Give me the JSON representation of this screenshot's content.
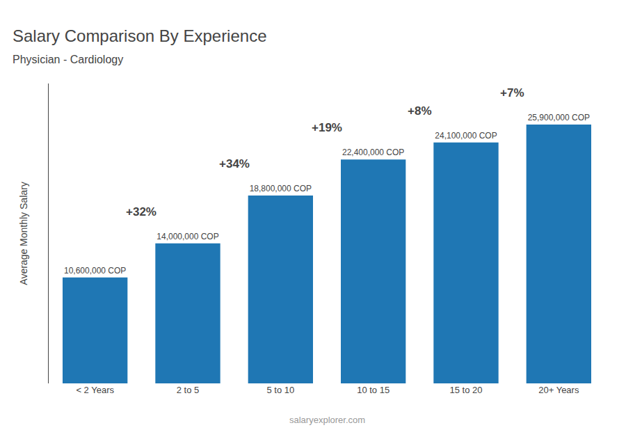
{
  "chart_data": {
    "type": "bar",
    "title": "Salary Comparison By Experience",
    "subtitle": "Physician - Cardiology",
    "ylabel": "Average Monthly Salary",
    "categories": [
      "< 2 Years",
      "2 to 5",
      "5 to 10",
      "10 to 15",
      "15 to 20",
      "20+ Years"
    ],
    "values": [
      10600000,
      14000000,
      18800000,
      22400000,
      24100000,
      25900000
    ],
    "value_labels": [
      "10,600,000 COP",
      "14,000,000 COP",
      "18,800,000 COP",
      "22,400,000 COP",
      "24,100,000 COP",
      "25,900,000 COP"
    ],
    "data_labels": true,
    "ylim": [
      0,
      30000000
    ],
    "tick_labels": "x",
    "grid": false,
    "annotations": [
      {
        "text": "+32%",
        "from": "< 2 Years",
        "to": "2 to 5"
      },
      {
        "text": "+34%",
        "from": "2 to 5",
        "to": "5 to 10"
      },
      {
        "text": "+19%",
        "from": "5 to 10",
        "to": "10 to 15"
      },
      {
        "text": "+8%",
        "from": "10 to 15",
        "to": "15 to 20"
      },
      {
        "text": "+7%",
        "from": "15 to 20",
        "to": "20+ Years"
      },
      {
        "text": "salaryexplorer.com"
      }
    ]
  }
}
